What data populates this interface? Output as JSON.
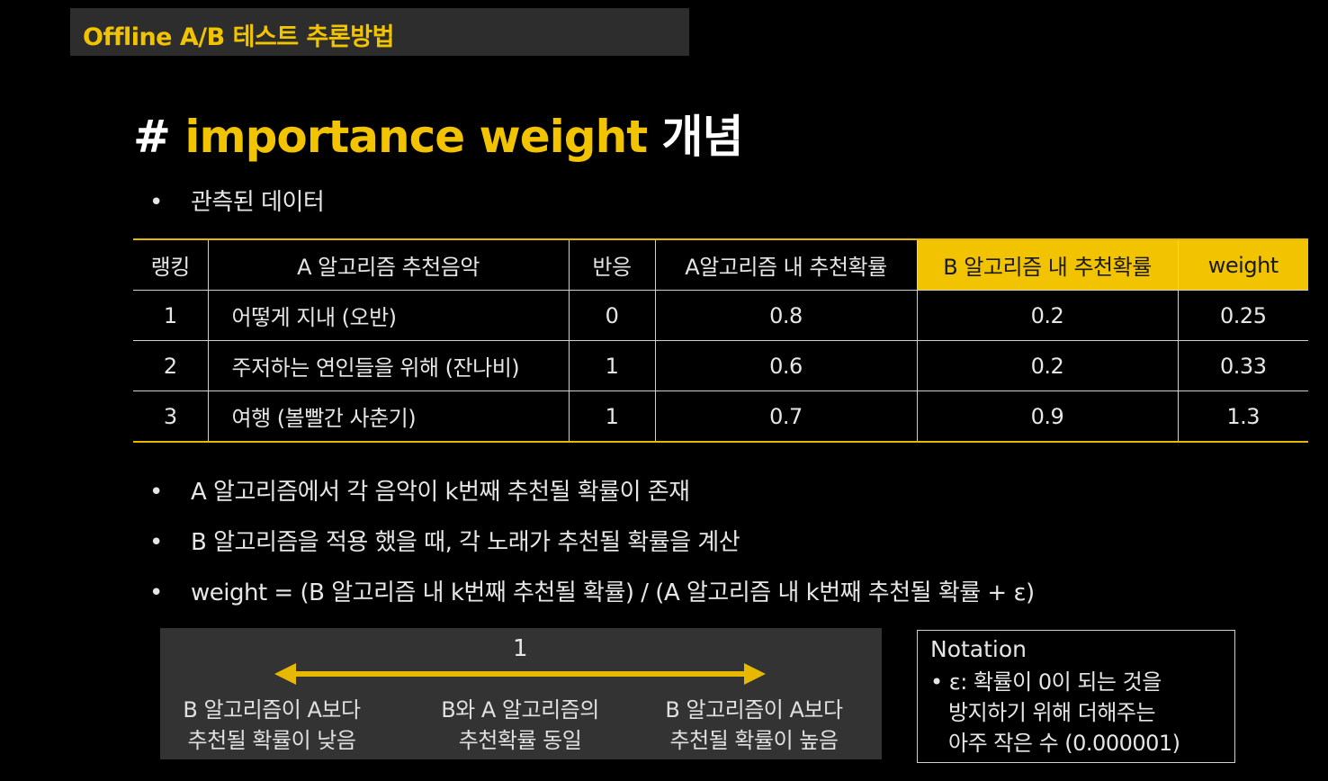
{
  "header": {
    "title": "Offline A/B 테스트 추론방법"
  },
  "title": {
    "hash": "#",
    "keyword": "importance weight",
    "rest": "개념"
  },
  "bullets": {
    "b1": "관측된 데이터",
    "b2": "A 알고리즘에서 각 음악이 k번째 추천될 확률이 존재",
    "b3": "B 알고리즘을 적용 했을 때, 각 노래가 추천될 확률을 계산",
    "b4": "weight = (B 알고리즘 내 k번째 추천될 확률) / (A 알고리즘 내 k번째 추천될 확률 + ε)",
    "dot": "•"
  },
  "table": {
    "headers": [
      "랭킹",
      "A 알고리즘 추천음악",
      "반응",
      "A알고리즘 내 추천확률",
      "B 알고리즘 내 추천확률",
      "weight"
    ],
    "rows": [
      [
        "1",
        "어떻게 지내 (오반)",
        "0",
        "0.8",
        "0.2",
        "0.25"
      ],
      [
        "2",
        "주저하는 연인들을 위해 (잔나비)",
        "1",
        "0.6",
        "0.2",
        "0.33"
      ],
      [
        "3",
        "여행 (볼빨간 사춘기)",
        "1",
        "0.7",
        "0.9",
        "1.3"
      ]
    ]
  },
  "scale": {
    "center_value": "1",
    "left_line1": "B 알고리즘이 A보다",
    "left_line2": "추천될 확률이 낮음",
    "mid_line1": "B와 A 알고리즘의",
    "mid_line2": "추천확률 동일",
    "right_line1": "B 알고리즘이 A보다",
    "right_line2": "추천될 확률이 높음"
  },
  "notation": {
    "title": "Notation",
    "line1": "• ε: 확률이 0이 되는 것을",
    "line2": "방지하기 위해 더해주는",
    "line3": "아주 작은 수 (0.000001)"
  },
  "colors": {
    "accent": "#f2c300",
    "background": "#000000",
    "panel": "#333333"
  }
}
